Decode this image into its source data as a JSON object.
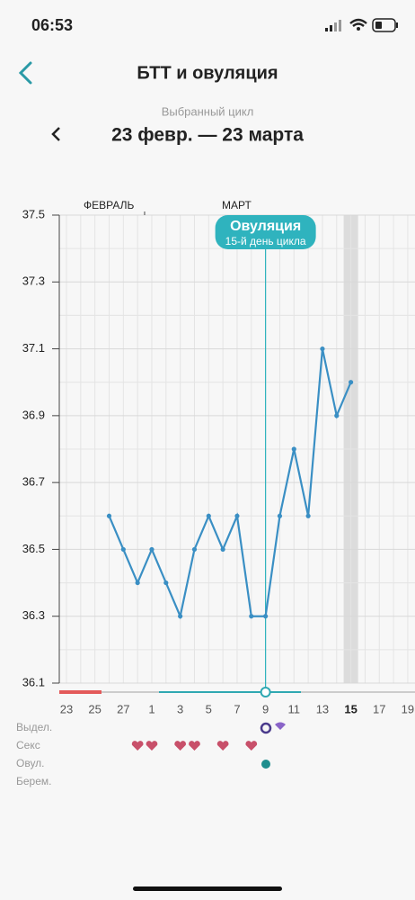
{
  "status_bar": {
    "time": "06:53"
  },
  "header": {
    "title": "БТТ и овуляция",
    "cycle_caption": "Выбранный цикл",
    "cycle_range": "23 февр. — 23 марта"
  },
  "chart_data": {
    "type": "line",
    "month_labels": [
      "ФЕВРАЛЬ",
      "МАРТ"
    ],
    "annotation": {
      "title": "Овуляция",
      "subtitle": "15-й день цикла"
    },
    "categories": [
      "23",
      null,
      "25",
      null,
      "27",
      null,
      "1",
      null,
      "3",
      null,
      "5",
      null,
      "7",
      null,
      "9",
      null,
      "11",
      null,
      "13",
      null,
      "15",
      null,
      "17",
      null,
      "19"
    ],
    "series": [
      {
        "name": "БТТ",
        "color": "#3a8fc4",
        "values": [
          null,
          null,
          null,
          36.6,
          36.5,
          36.4,
          36.5,
          36.4,
          36.3,
          36.5,
          36.6,
          36.5,
          36.6,
          36.3,
          36.3,
          36.6,
          36.8,
          36.6,
          37.1,
          36.9,
          37.0,
          null,
          null,
          null,
          null
        ]
      }
    ],
    "ylim": [
      36.1,
      37.5
    ],
    "yticks": [
      36.1,
      36.3,
      36.5,
      36.7,
      36.9,
      37.1,
      37.3,
      37.5
    ],
    "grid": true,
    "row_labels": [
      "Выдел.",
      "Секс",
      "Овул.",
      "Берем."
    ]
  }
}
